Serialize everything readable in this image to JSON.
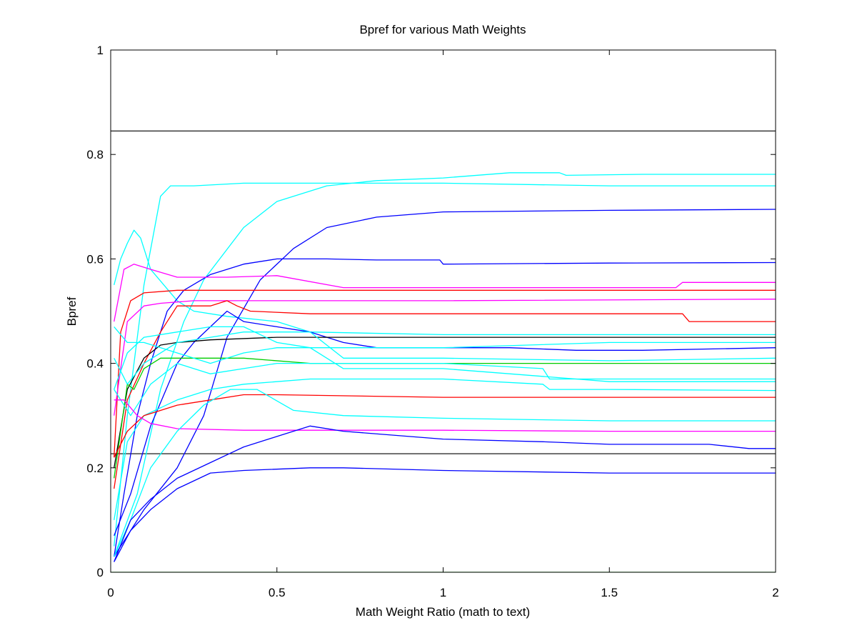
{
  "chart_data": {
    "type": "line",
    "title": "Bpref for various Math Weights",
    "xlabel": "Math Weight Ratio (math to text)",
    "ylabel": "Bpref",
    "xlim": [
      0,
      2
    ],
    "ylim": [
      0,
      1
    ],
    "x_ticks": [
      0,
      0.5,
      1,
      1.5,
      2
    ],
    "x_tick_labels": [
      "0",
      "0.5",
      "1",
      "1.5",
      "2"
    ],
    "y_ticks": [
      0,
      0.2,
      0.4,
      0.6,
      0.8,
      1
    ],
    "y_tick_labels": [
      "0",
      "0.2",
      "0.4",
      "0.6",
      "0.8",
      "1"
    ],
    "grid": false,
    "legend": "none",
    "reference_lines": [
      {
        "y": 0.845,
        "color": "#000000"
      },
      {
        "y": 0.227,
        "color": "#000000"
      }
    ],
    "series": [
      {
        "color": "#00ffff",
        "points": [
          [
            0.01,
            0.05
          ],
          [
            0.05,
            0.3
          ],
          [
            0.1,
            0.55
          ],
          [
            0.15,
            0.72
          ],
          [
            0.18,
            0.74
          ],
          [
            0.25,
            0.74
          ],
          [
            0.4,
            0.745
          ],
          [
            0.6,
            0.745
          ],
          [
            1.0,
            0.745
          ],
          [
            1.5,
            0.74
          ],
          [
            2.0,
            0.74
          ]
        ]
      },
      {
        "color": "#00ffff",
        "points": [
          [
            0.01,
            0.55
          ],
          [
            0.03,
            0.6
          ],
          [
            0.05,
            0.63
          ],
          [
            0.07,
            0.655
          ],
          [
            0.09,
            0.64
          ],
          [
            0.12,
            0.58
          ],
          [
            0.16,
            0.55
          ],
          [
            0.2,
            0.52
          ],
          [
            0.25,
            0.5
          ],
          [
            0.35,
            0.49
          ],
          [
            0.5,
            0.48
          ],
          [
            0.6,
            0.46
          ],
          [
            1.0,
            0.455
          ],
          [
            1.5,
            0.455
          ],
          [
            2.0,
            0.455
          ]
        ]
      },
      {
        "color": "#00ffff",
        "points": [
          [
            0.01,
            0.03
          ],
          [
            0.08,
            0.15
          ],
          [
            0.15,
            0.35
          ],
          [
            0.22,
            0.48
          ],
          [
            0.28,
            0.56
          ],
          [
            0.4,
            0.66
          ],
          [
            0.5,
            0.71
          ],
          [
            0.65,
            0.74
          ],
          [
            0.8,
            0.75
          ],
          [
            1.0,
            0.755
          ],
          [
            1.2,
            0.765
          ],
          [
            1.35,
            0.765
          ],
          [
            1.37,
            0.76
          ],
          [
            1.6,
            0.762
          ],
          [
            2.0,
            0.762
          ]
        ]
      },
      {
        "color": "#0000ff",
        "points": [
          [
            0.01,
            0.03
          ],
          [
            0.1,
            0.12
          ],
          [
            0.2,
            0.2
          ],
          [
            0.28,
            0.3
          ],
          [
            0.35,
            0.45
          ],
          [
            0.45,
            0.56
          ],
          [
            0.55,
            0.62
          ],
          [
            0.65,
            0.66
          ],
          [
            0.8,
            0.68
          ],
          [
            1.0,
            0.69
          ],
          [
            1.5,
            0.693
          ],
          [
            2.0,
            0.695
          ]
        ]
      },
      {
        "color": "#0000ff",
        "points": [
          [
            0.01,
            0.03
          ],
          [
            0.04,
            0.15
          ],
          [
            0.08,
            0.3
          ],
          [
            0.12,
            0.4
          ],
          [
            0.17,
            0.5
          ],
          [
            0.22,
            0.54
          ],
          [
            0.3,
            0.57
          ],
          [
            0.4,
            0.59
          ],
          [
            0.5,
            0.6
          ],
          [
            0.65,
            0.6
          ],
          [
            0.8,
            0.598
          ],
          [
            0.99,
            0.598
          ],
          [
            1.0,
            0.59
          ],
          [
            1.5,
            0.592
          ],
          [
            2.0,
            0.593
          ]
        ]
      },
      {
        "color": "#ff00ff",
        "points": [
          [
            0.01,
            0.48
          ],
          [
            0.04,
            0.58
          ],
          [
            0.07,
            0.59
          ],
          [
            0.12,
            0.58
          ],
          [
            0.2,
            0.565
          ],
          [
            0.35,
            0.565
          ],
          [
            0.5,
            0.568
          ],
          [
            0.7,
            0.545
          ],
          [
            1.0,
            0.545
          ],
          [
            1.7,
            0.545
          ],
          [
            1.72,
            0.555
          ],
          [
            2.0,
            0.555
          ]
        ]
      },
      {
        "color": "#ff0000",
        "points": [
          [
            0.01,
            0.22
          ],
          [
            0.03,
            0.46
          ],
          [
            0.06,
            0.52
          ],
          [
            0.1,
            0.535
          ],
          [
            0.2,
            0.54
          ],
          [
            0.4,
            0.54
          ],
          [
            1.0,
            0.54
          ],
          [
            2.0,
            0.54
          ]
        ]
      },
      {
        "color": "#ff00ff",
        "points": [
          [
            0.01,
            0.3
          ],
          [
            0.05,
            0.48
          ],
          [
            0.1,
            0.51
          ],
          [
            0.15,
            0.515
          ],
          [
            0.25,
            0.52
          ],
          [
            0.4,
            0.52
          ],
          [
            0.6,
            0.52
          ],
          [
            1.0,
            0.52
          ],
          [
            2.0,
            0.523
          ]
        ]
      },
      {
        "color": "#ff0000",
        "points": [
          [
            0.01,
            0.16
          ],
          [
            0.05,
            0.33
          ],
          [
            0.1,
            0.4
          ],
          [
            0.15,
            0.46
          ],
          [
            0.2,
            0.51
          ],
          [
            0.25,
            0.51
          ],
          [
            0.3,
            0.51
          ],
          [
            0.35,
            0.52
          ],
          [
            0.38,
            0.51
          ],
          [
            0.42,
            0.5
          ],
          [
            0.6,
            0.495
          ],
          [
            1.0,
            0.495
          ],
          [
            1.72,
            0.495
          ],
          [
            1.74,
            0.48
          ],
          [
            2.0,
            0.48
          ]
        ]
      },
      {
        "color": "#0000ff",
        "points": [
          [
            0.01,
            0.07
          ],
          [
            0.06,
            0.15
          ],
          [
            0.12,
            0.28
          ],
          [
            0.2,
            0.4
          ],
          [
            0.25,
            0.44
          ],
          [
            0.3,
            0.47
          ],
          [
            0.35,
            0.5
          ],
          [
            0.4,
            0.48
          ],
          [
            0.5,
            0.47
          ],
          [
            0.6,
            0.46
          ],
          [
            0.7,
            0.44
          ],
          [
            0.8,
            0.43
          ],
          [
            1.0,
            0.43
          ],
          [
            1.2,
            0.43
          ],
          [
            1.4,
            0.425
          ],
          [
            1.6,
            0.425
          ],
          [
            2.0,
            0.43
          ]
        ]
      },
      {
        "color": "#000000",
        "points": [
          [
            0.01,
            0.2
          ],
          [
            0.05,
            0.35
          ],
          [
            0.1,
            0.41
          ],
          [
            0.15,
            0.435
          ],
          [
            0.2,
            0.44
          ],
          [
            0.3,
            0.445
          ],
          [
            0.5,
            0.45
          ],
          [
            1.0,
            0.45
          ],
          [
            2.0,
            0.45
          ]
        ]
      },
      {
        "color": "#00cc00",
        "points": [
          [
            0.01,
            0.18
          ],
          [
            0.05,
            0.36
          ],
          [
            0.07,
            0.35
          ],
          [
            0.1,
            0.39
          ],
          [
            0.15,
            0.41
          ],
          [
            0.25,
            0.41
          ],
          [
            0.4,
            0.41
          ],
          [
            0.6,
            0.4
          ],
          [
            1.0,
            0.4
          ],
          [
            2.0,
            0.4
          ]
        ]
      },
      {
        "color": "#00ffff",
        "points": [
          [
            0.01,
            0.47
          ],
          [
            0.05,
            0.44
          ],
          [
            0.1,
            0.44
          ],
          [
            0.2,
            0.42
          ],
          [
            0.3,
            0.4
          ],
          [
            0.4,
            0.42
          ],
          [
            0.5,
            0.43
          ],
          [
            0.7,
            0.43
          ],
          [
            1.0,
            0.43
          ],
          [
            1.5,
            0.44
          ],
          [
            2.0,
            0.44
          ]
        ]
      },
      {
        "color": "#00ffff",
        "points": [
          [
            0.01,
            0.41
          ],
          [
            0.05,
            0.36
          ],
          [
            0.1,
            0.4
          ],
          [
            0.2,
            0.44
          ],
          [
            0.3,
            0.45
          ],
          [
            0.4,
            0.46
          ],
          [
            0.6,
            0.46
          ],
          [
            0.7,
            0.41
          ],
          [
            1.0,
            0.41
          ],
          [
            1.5,
            0.405
          ],
          [
            2.0,
            0.41
          ]
        ]
      },
      {
        "color": "#00ffff",
        "points": [
          [
            0.01,
            0.35
          ],
          [
            0.06,
            0.3
          ],
          [
            0.12,
            0.36
          ],
          [
            0.2,
            0.4
          ],
          [
            0.3,
            0.38
          ],
          [
            0.4,
            0.39
          ],
          [
            0.5,
            0.4
          ],
          [
            0.7,
            0.4
          ],
          [
            1.0,
            0.4
          ],
          [
            1.3,
            0.39
          ],
          [
            1.32,
            0.37
          ],
          [
            1.6,
            0.37
          ],
          [
            2.0,
            0.37
          ]
        ]
      },
      {
        "color": "#00ffff",
        "points": [
          [
            0.01,
            0.35
          ],
          [
            0.05,
            0.42
          ],
          [
            0.1,
            0.45
          ],
          [
            0.2,
            0.46
          ],
          [
            0.3,
            0.47
          ],
          [
            0.4,
            0.47
          ],
          [
            0.5,
            0.44
          ],
          [
            0.6,
            0.43
          ],
          [
            0.7,
            0.39
          ],
          [
            1.0,
            0.39
          ],
          [
            1.4,
            0.37
          ],
          [
            1.5,
            0.365
          ],
          [
            2.0,
            0.365
          ]
        ]
      },
      {
        "color": "#00ffff",
        "points": [
          [
            0.01,
            0.1
          ],
          [
            0.05,
            0.25
          ],
          [
            0.1,
            0.3
          ],
          [
            0.2,
            0.33
          ],
          [
            0.3,
            0.35
          ],
          [
            0.4,
            0.36
          ],
          [
            0.6,
            0.37
          ],
          [
            0.8,
            0.37
          ],
          [
            1.0,
            0.37
          ],
          [
            1.3,
            0.36
          ],
          [
            1.32,
            0.35
          ],
          [
            1.5,
            0.35
          ],
          [
            2.0,
            0.348
          ]
        ]
      },
      {
        "color": "#ff0000",
        "points": [
          [
            0.01,
            0.22
          ],
          [
            0.05,
            0.27
          ],
          [
            0.1,
            0.3
          ],
          [
            0.2,
            0.32
          ],
          [
            0.3,
            0.33
          ],
          [
            0.4,
            0.34
          ],
          [
            0.5,
            0.34
          ],
          [
            1.0,
            0.335
          ],
          [
            2.0,
            0.335
          ]
        ]
      },
      {
        "color": "#ff00ff",
        "points": [
          [
            0.01,
            0.33
          ],
          [
            0.04,
            0.33
          ],
          [
            0.08,
            0.3
          ],
          [
            0.12,
            0.285
          ],
          [
            0.2,
            0.275
          ],
          [
            0.4,
            0.272
          ],
          [
            0.8,
            0.272
          ],
          [
            1.0,
            0.272
          ],
          [
            1.5,
            0.27
          ],
          [
            2.0,
            0.27
          ]
        ]
      },
      {
        "color": "#00ffff",
        "points": [
          [
            0.01,
            0.03
          ],
          [
            0.06,
            0.1
          ],
          [
            0.12,
            0.2
          ],
          [
            0.2,
            0.27
          ],
          [
            0.28,
            0.32
          ],
          [
            0.36,
            0.35
          ],
          [
            0.44,
            0.35
          ],
          [
            0.55,
            0.31
          ],
          [
            0.7,
            0.3
          ],
          [
            1.0,
            0.295
          ],
          [
            1.5,
            0.29
          ],
          [
            2.0,
            0.29
          ]
        ]
      },
      {
        "color": "#0000ff",
        "points": [
          [
            0.01,
            0.02
          ],
          [
            0.06,
            0.1
          ],
          [
            0.12,
            0.14
          ],
          [
            0.2,
            0.18
          ],
          [
            0.3,
            0.21
          ],
          [
            0.4,
            0.24
          ],
          [
            0.5,
            0.26
          ],
          [
            0.6,
            0.28
          ],
          [
            0.7,
            0.27
          ],
          [
            1.0,
            0.255
          ],
          [
            1.3,
            0.25
          ],
          [
            1.5,
            0.245
          ],
          [
            1.8,
            0.245
          ],
          [
            1.92,
            0.237
          ],
          [
            2.0,
            0.237
          ]
        ]
      },
      {
        "color": "#0000ff",
        "points": [
          [
            0.01,
            0.02
          ],
          [
            0.06,
            0.08
          ],
          [
            0.12,
            0.12
          ],
          [
            0.2,
            0.16
          ],
          [
            0.3,
            0.19
          ],
          [
            0.4,
            0.195
          ],
          [
            0.6,
            0.2
          ],
          [
            0.7,
            0.2
          ],
          [
            1.0,
            0.195
          ],
          [
            1.5,
            0.19
          ],
          [
            2.0,
            0.19
          ]
        ]
      },
      {
        "color": "#00cc00",
        "points": [
          [
            0.0,
            0.0
          ],
          [
            2.0,
            0.0
          ]
        ]
      }
    ]
  }
}
